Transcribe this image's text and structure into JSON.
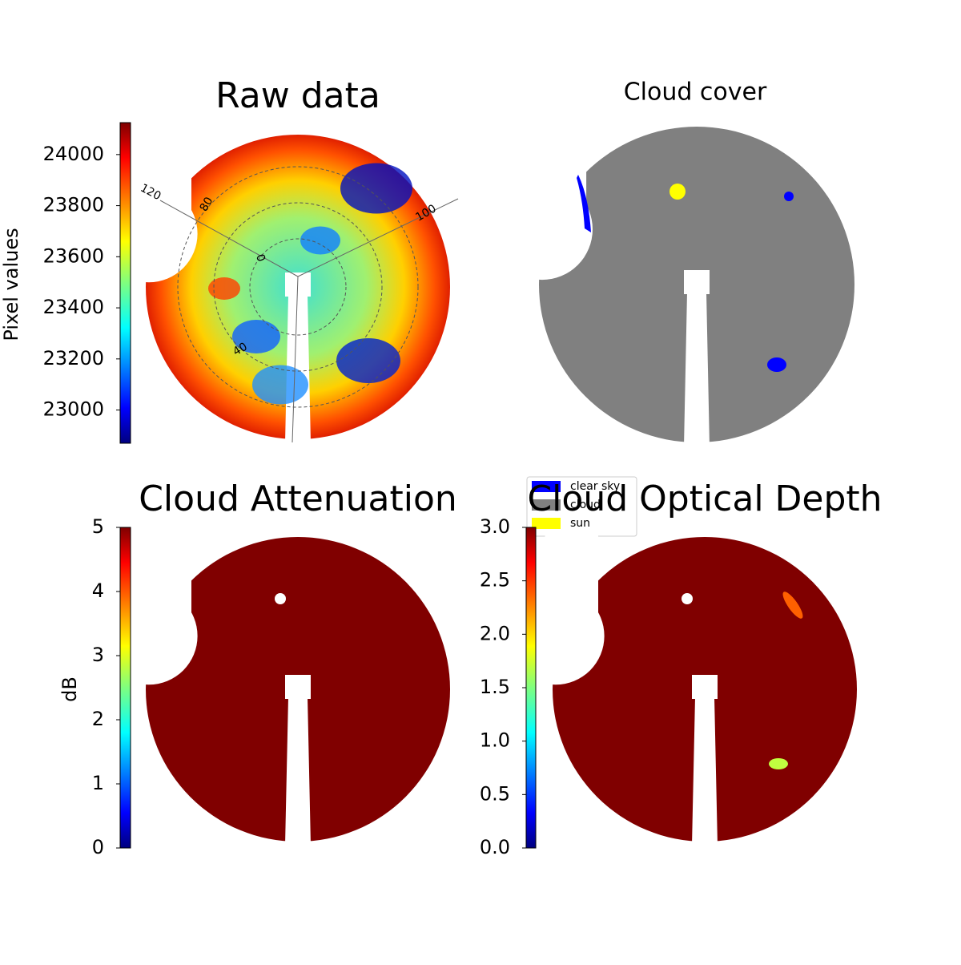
{
  "chart_data": [
    {
      "type": "image",
      "title": "Raw data",
      "colorbar_label": "Pixel values",
      "colormap": "jet",
      "clim": [
        22870,
        24125
      ],
      "cticks": [
        23000,
        23200,
        23400,
        23600,
        23800,
        24000
      ],
      "polar_labels": [
        "120",
        "80",
        "0",
        "40",
        "100"
      ]
    },
    {
      "type": "image",
      "title": "Cloud cover",
      "legend": [
        {
          "name": "clear sky",
          "color": "#0000ff"
        },
        {
          "name": "cloud",
          "color": "#808080"
        },
        {
          "name": "sun",
          "color": "#ffff00"
        }
      ]
    },
    {
      "type": "image",
      "title": "Cloud Attenuation",
      "colorbar_label": "dB",
      "colormap": "jet",
      "clim": [
        0,
        5
      ],
      "cticks": [
        0,
        1,
        2,
        3,
        4,
        5
      ]
    },
    {
      "type": "image",
      "title": "Cloud Optical Depth",
      "colormap": "jet",
      "clim": [
        0,
        3
      ],
      "cticks": [
        {
          "value": 0,
          "label": "0.0"
        },
        {
          "value": 0.5,
          "label": "0.5"
        },
        {
          "value": 1,
          "label": "1.0"
        },
        {
          "value": 1.5,
          "label": "1.5"
        },
        {
          "value": 2,
          "label": "2.0"
        },
        {
          "value": 2.5,
          "label": "2.5"
        },
        {
          "value": 3,
          "label": "3.0"
        }
      ]
    }
  ]
}
